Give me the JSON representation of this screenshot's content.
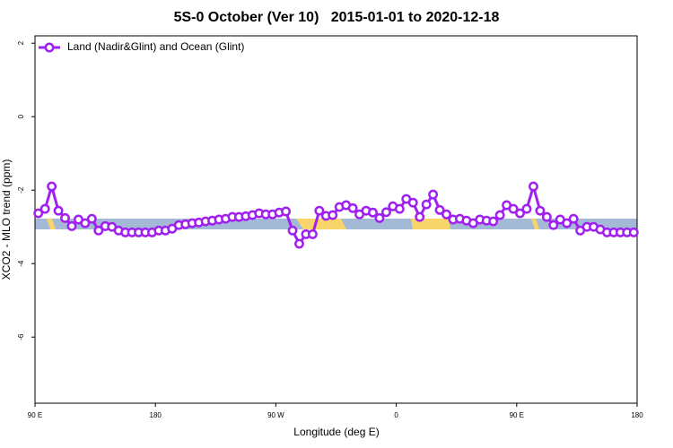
{
  "chart_data": {
    "type": "line",
    "title": "5S-0 October (Ver 10)   2015-01-01 to 2020-12-18",
    "xlabel": "Longitude (deg E)",
    "ylabel": "XCO2 - MLO trend (ppm)",
    "xlim": [
      90,
      540
    ],
    "ylim": [
      -7.8,
      2.2
    ],
    "xticks": [
      {
        "value": 90,
        "label": "90 E"
      },
      180,
      {
        "value": 270,
        "label": "90 W"
      },
      {
        "value": 360,
        "label": "0"
      },
      {
        "value": 450,
        "label": "90 E"
      },
      {
        "value": 540,
        "label": "180"
      }
    ],
    "yticks": [
      2,
      0,
      -2,
      -4,
      -6
    ],
    "legend": "top-left",
    "x": [
      92.5,
      97.5,
      102.5,
      107.5,
      112.5,
      117.5,
      122.5,
      127.5,
      132.5,
      137.5,
      142.5,
      147.5,
      152.5,
      157.5,
      162.5,
      167.5,
      172.5,
      177.5,
      182.5,
      187.5,
      192.5,
      197.5,
      202.5,
      207.5,
      212.5,
      217.5,
      222.5,
      227.5,
      232.5,
      237.5,
      242.5,
      247.5,
      252.5,
      257.5,
      262.5,
      267.5,
      272.5,
      277.5,
      282.5,
      287.5,
      292.5,
      297.5,
      302.5,
      307.5,
      312.5,
      317.5,
      322.5,
      327.5,
      332.5,
      337.5,
      342.5,
      347.5,
      352.5,
      357.5,
      362.5,
      367.5,
      372.5,
      377.5,
      382.5,
      387.5,
      392.5,
      397.5,
      402.5,
      407.5,
      412.5,
      417.5,
      422.5,
      427.5,
      432.5,
      437.5,
      442.5,
      447.5,
      452.5,
      457.5,
      462.5,
      467.5,
      472.5,
      477.5,
      482.5,
      487.5,
      492.5,
      497.5,
      502.5,
      507.5,
      512.5,
      517.5,
      522.5,
      527.5,
      532.5,
      537.5
    ],
    "series": [
      {
        "name": "Land (Nadir&Glint) and Ocean (Glint)",
        "color": "#a020f0",
        "values": [
          -2.63,
          -2.51,
          -1.9,
          -2.56,
          -2.76,
          -2.98,
          -2.8,
          -2.9,
          -2.78,
          -3.1,
          -2.98,
          -3.0,
          -3.1,
          -3.15,
          -3.15,
          -3.15,
          -3.15,
          -3.15,
          -3.1,
          -3.1,
          -3.05,
          -2.95,
          -2.93,
          -2.9,
          -2.88,
          -2.85,
          -2.83,
          -2.8,
          -2.78,
          -2.73,
          -2.73,
          -2.71,
          -2.68,
          -2.63,
          -2.66,
          -2.66,
          -2.61,
          -2.58,
          -3.1,
          -3.46,
          -3.2,
          -3.2,
          -2.56,
          -2.7,
          -2.68,
          -2.46,
          -2.41,
          -2.49,
          -2.66,
          -2.56,
          -2.61,
          -2.76,
          -2.6,
          -2.44,
          -2.51,
          -2.24,
          -2.34,
          -2.73,
          -2.39,
          -2.12,
          -2.54,
          -2.66,
          -2.8,
          -2.78,
          -2.83,
          -2.9,
          -2.8,
          -2.83,
          -2.85,
          -2.68,
          -2.41,
          -2.51,
          -2.63,
          -2.51,
          -1.9,
          -2.56,
          -2.73,
          -2.95,
          -2.8,
          -2.9,
          -2.78,
          -3.1,
          -3.0,
          -3.0,
          -3.07,
          -3.15,
          -3.15,
          -3.15,
          -3.15,
          -3.15
        ]
      }
    ]
  }
}
